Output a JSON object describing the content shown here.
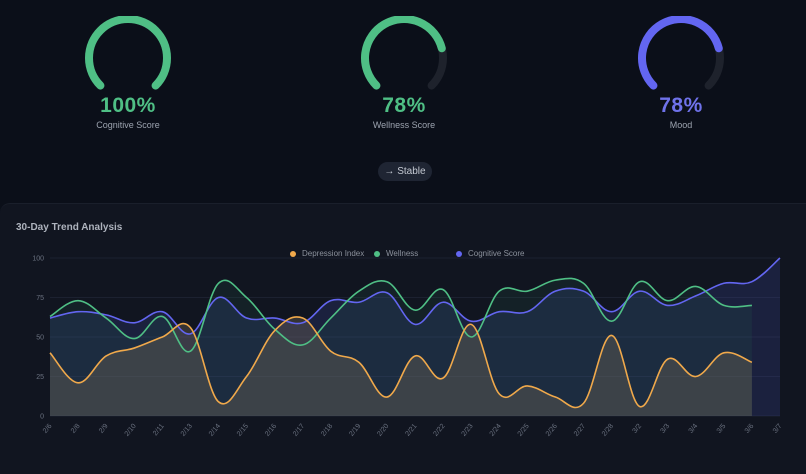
{
  "gauges": [
    {
      "label": "Cognitive Score",
      "value": "100%",
      "percent": 100,
      "color": "#4fbf85"
    },
    {
      "label": "Wellness Score",
      "value": "78%",
      "percent": 78,
      "color": "#4fbf85"
    },
    {
      "label": "Mood",
      "value": "78%",
      "percent": 78,
      "color": "#6366f1"
    }
  ],
  "status_pill": {
    "label": "→ Stable"
  },
  "panel": {
    "title": "30-Day Trend Analysis"
  },
  "legend": [
    {
      "label": "Depression Index",
      "color": "#f0a94b"
    },
    {
      "label": "Wellness",
      "color": "#4fbf85"
    },
    {
      "label": "Cognitive Score",
      "color": "#6366f1"
    }
  ],
  "chart_data": {
    "type": "area",
    "title": "30-Day Trend Analysis",
    "xlabel": "",
    "ylabel": "",
    "ylim": [
      0,
      100
    ],
    "yticks": [
      0,
      25,
      50,
      75,
      100
    ],
    "grid": true,
    "legend_position": "top",
    "categories": [
      "2/6",
      "2/8",
      "2/9",
      "2/10",
      "2/11",
      "2/13",
      "2/14",
      "2/15",
      "2/16",
      "2/17",
      "2/18",
      "2/19",
      "2/20",
      "2/21",
      "2/22",
      "2/23",
      "2/24",
      "2/25",
      "2/26",
      "2/27",
      "2/28",
      "3/2",
      "3/3",
      "3/4",
      "3/5",
      "3/6",
      "3/7"
    ],
    "series": [
      {
        "name": "Depression Index",
        "color": "#f0a94b",
        "values": [
          40,
          21,
          38,
          43,
          50,
          56,
          9,
          25,
          54,
          62,
          41,
          34,
          12,
          38,
          24,
          58,
          14,
          19,
          12,
          8,
          51,
          6,
          36,
          25,
          40,
          34,
          null
        ]
      },
      {
        "name": "Wellness",
        "color": "#4fbf85",
        "values": [
          63,
          73,
          62,
          49,
          63,
          41,
          84,
          75,
          55,
          45,
          62,
          79,
          85,
          67,
          80,
          50,
          79,
          79,
          86,
          84,
          60,
          85,
          73,
          82,
          70,
          70,
          null
        ]
      },
      {
        "name": "Cognitive Score",
        "color": "#6366f1",
        "values": [
          62,
          66,
          64,
          59,
          66,
          52,
          75,
          62,
          62,
          59,
          73,
          72,
          78,
          58,
          72,
          60,
          66,
          66,
          79,
          79,
          66,
          79,
          70,
          76,
          84,
          85,
          100
        ]
      }
    ]
  }
}
